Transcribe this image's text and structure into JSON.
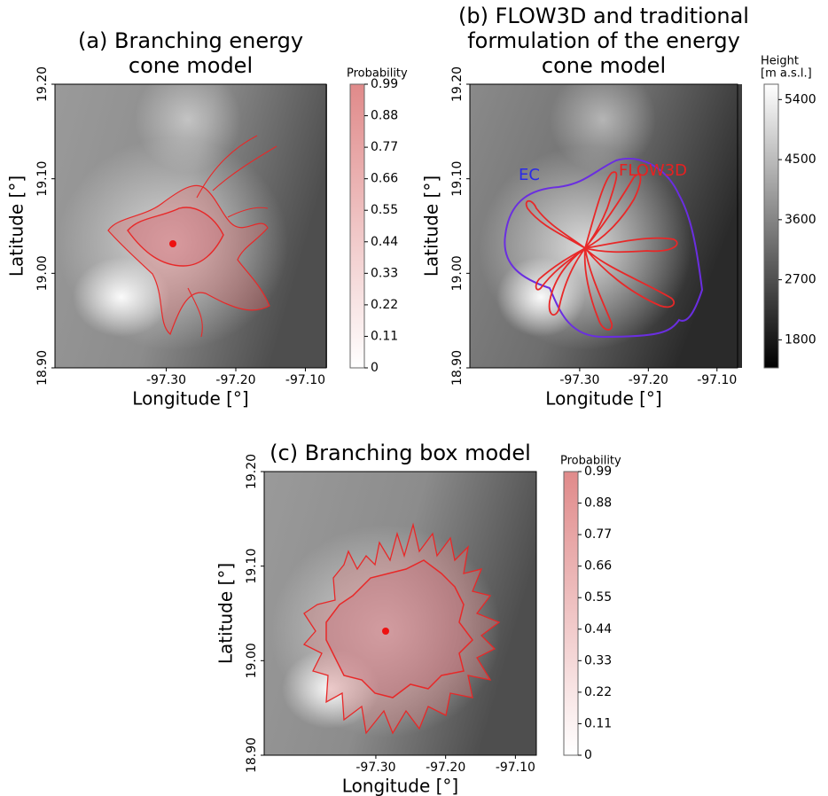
{
  "chart_data": [
    {
      "type": "map",
      "title": [
        "(a) Branching energy",
        "cone model"
      ],
      "xlabel": "Longitude [°]",
      "ylabel": "Latitude [°]",
      "xlim": [
        -97.46,
        -97.07
      ],
      "ylim": [
        18.9,
        19.2
      ],
      "xticks": [
        {
          "value": -97.3,
          "label": "-97.30"
        },
        {
          "value": -97.2,
          "label": "-97.20"
        },
        {
          "value": -97.1,
          "label": "-97.10"
        }
      ],
      "yticks": [
        {
          "value": 18.9,
          "label": "18.90"
        },
        {
          "value": 19.0,
          "label": "19.00"
        },
        {
          "value": 19.1,
          "label": "19.10"
        },
        {
          "value": 19.2,
          "label": "19.20"
        }
      ],
      "colorbar": {
        "label": [
          "Probability"
        ],
        "lim": [
          0,
          0.99
        ],
        "ticks": [
          0,
          0.11,
          0.22,
          0.33,
          0.44,
          0.55,
          0.66,
          0.77,
          0.88,
          0.99
        ],
        "colors": [
          "#ffffff",
          "#e08a8a"
        ]
      }
    },
    {
      "type": "map",
      "title": [
        "(b) FLOW3D and traditional",
        "formulation of the energy",
        "cone model"
      ],
      "xlabel": "Longitude [°]",
      "ylabel": "Latitude [°]",
      "xlim": [
        -97.46,
        -97.07
      ],
      "ylim": [
        18.9,
        19.2
      ],
      "xticks": [
        {
          "value": -97.3,
          "label": "-97.30"
        },
        {
          "value": -97.2,
          "label": "-97.20"
        },
        {
          "value": -97.1,
          "label": "-97.10"
        }
      ],
      "yticks": [
        {
          "value": 18.9,
          "label": "18.90"
        },
        {
          "value": 19.0,
          "label": "19.00"
        },
        {
          "value": 19.1,
          "label": "19.10"
        },
        {
          "value": 19.2,
          "label": "19.20"
        }
      ],
      "annotations": [
        {
          "text": "EC",
          "color": "#2a2ae8"
        },
        {
          "text": "FLOW3D",
          "color": "#e82020"
        }
      ],
      "colorbar": {
        "label": [
          "Height",
          "[m a.s.l.]"
        ],
        "lim": [
          1380,
          5630
        ],
        "ticks": [
          1800,
          2700,
          3600,
          4500,
          5400
        ],
        "colors": [
          "#000000",
          "#ffffff"
        ]
      }
    },
    {
      "type": "map",
      "title": [
        "(c) Branching box model"
      ],
      "xlabel": "Longitude [°]",
      "ylabel": "Latitude [°]",
      "xlim": [
        -97.46,
        -97.07
      ],
      "ylim": [
        18.9,
        19.2
      ],
      "xticks": [
        {
          "value": -97.3,
          "label": "-97.30"
        },
        {
          "value": -97.2,
          "label": "-97.20"
        },
        {
          "value": -97.1,
          "label": "-97.10"
        }
      ],
      "yticks": [
        {
          "value": 18.9,
          "label": "18.90"
        },
        {
          "value": 19.0,
          "label": "19.00"
        },
        {
          "value": 19.1,
          "label": "19.10"
        },
        {
          "value": 19.2,
          "label": "19.20"
        }
      ],
      "colorbar": {
        "label": [
          "Probability"
        ],
        "lim": [
          0,
          0.99
        ],
        "ticks": [
          0,
          0.11,
          0.22,
          0.33,
          0.44,
          0.55,
          0.66,
          0.77,
          0.88,
          0.99
        ],
        "colors": [
          "#ffffff",
          "#e08a8a"
        ]
      }
    }
  ]
}
